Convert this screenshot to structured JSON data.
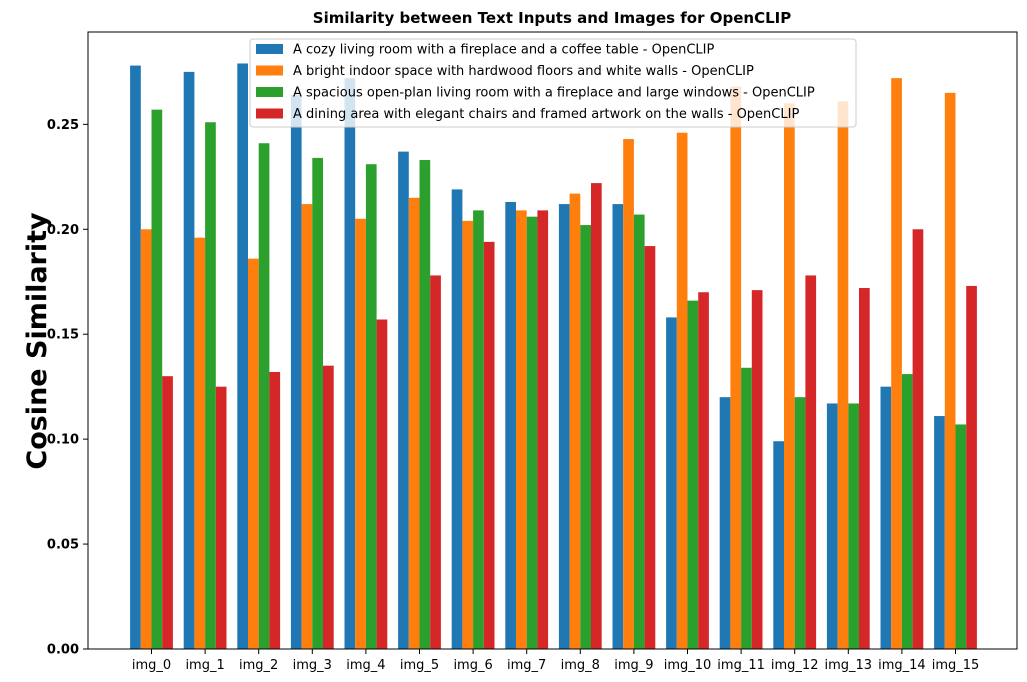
{
  "chart_data": {
    "type": "bar",
    "title": "Similarity between Text Inputs and Images for OpenCLIP",
    "xlabel": "",
    "ylabel": "Cosine Similarity",
    "ylim": [
      0,
      0.294
    ],
    "yticks": [
      "0.00",
      "0.05",
      "0.10",
      "0.15",
      "0.20",
      "0.25"
    ],
    "legend_position": "top-center",
    "categories": [
      "img_0",
      "img_1",
      "img_2",
      "img_3",
      "img_4",
      "img_5",
      "img_6",
      "img_7",
      "img_8",
      "img_9",
      "img_10",
      "img_11",
      "img_12",
      "img_13",
      "img_14",
      "img_15"
    ],
    "series": [
      {
        "name": "A cozy living room with a fireplace and a coffee table - OpenCLIP",
        "color": "#1f77b4",
        "values": [
          0.278,
          0.275,
          0.279,
          0.264,
          0.272,
          0.237,
          0.219,
          0.213,
          0.212,
          0.212,
          0.158,
          0.12,
          0.099,
          0.117,
          0.125,
          0.111
        ]
      },
      {
        "name": "A bright indoor space with hardwood floors and white walls - OpenCLIP",
        "color": "#ff7f0e",
        "values": [
          0.2,
          0.196,
          0.186,
          0.212,
          0.205,
          0.215,
          0.204,
          0.209,
          0.217,
          0.243,
          0.246,
          0.268,
          0.26,
          0.261,
          0.272,
          0.265
        ]
      },
      {
        "name": "A spacious open-plan living room with a fireplace and large windows - OpenCLIP",
        "color": "#2ca02c",
        "values": [
          0.257,
          0.251,
          0.241,
          0.234,
          0.231,
          0.233,
          0.209,
          0.206,
          0.202,
          0.207,
          0.166,
          0.134,
          0.12,
          0.117,
          0.131,
          0.107
        ]
      },
      {
        "name": "A dining area with elegant chairs and framed artwork on the walls - OpenCLIP",
        "color": "#d62728",
        "values": [
          0.13,
          0.125,
          0.132,
          0.135,
          0.157,
          0.178,
          0.194,
          0.209,
          0.222,
          0.192,
          0.17,
          0.171,
          0.178,
          0.172,
          0.2,
          0.173
        ]
      }
    ]
  }
}
